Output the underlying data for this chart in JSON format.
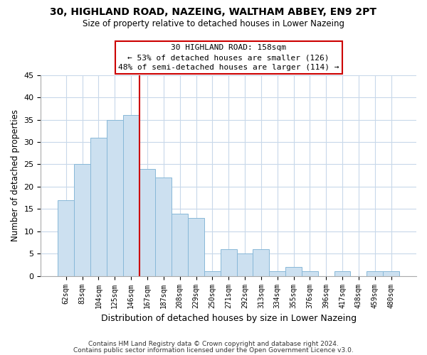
{
  "title": "30, HIGHLAND ROAD, NAZEING, WALTHAM ABBEY, EN9 2PT",
  "subtitle": "Size of property relative to detached houses in Lower Nazeing",
  "xlabel": "Distribution of detached houses by size in Lower Nazeing",
  "ylabel": "Number of detached properties",
  "footnote1": "Contains HM Land Registry data © Crown copyright and database right 2024.",
  "footnote2": "Contains public sector information licensed under the Open Government Licence v3.0.",
  "bar_labels": [
    "62sqm",
    "83sqm",
    "104sqm",
    "125sqm",
    "146sqm",
    "167sqm",
    "187sqm",
    "208sqm",
    "229sqm",
    "250sqm",
    "271sqm",
    "292sqm",
    "313sqm",
    "334sqm",
    "355sqm",
    "376sqm",
    "396sqm",
    "417sqm",
    "438sqm",
    "459sqm",
    "480sqm"
  ],
  "bar_values": [
    17,
    25,
    31,
    35,
    36,
    24,
    22,
    14,
    13,
    1,
    6,
    5,
    6,
    1,
    2,
    1,
    0,
    1,
    0,
    1,
    1
  ],
  "bar_color": "#cce0f0",
  "bar_edge_color": "#88b8d8",
  "vline_color": "#cc0000",
  "vline_position": 4.5,
  "annotation_title": "30 HIGHLAND ROAD: 158sqm",
  "annotation_line1": "← 53% of detached houses are smaller (126)",
  "annotation_line2": "48% of semi-detached houses are larger (114) →",
  "ylim": [
    0,
    45
  ],
  "yticks": [
    0,
    5,
    10,
    15,
    20,
    25,
    30,
    35,
    40,
    45
  ],
  "background_color": "#ffffff",
  "grid_color": "#c8d8ea"
}
